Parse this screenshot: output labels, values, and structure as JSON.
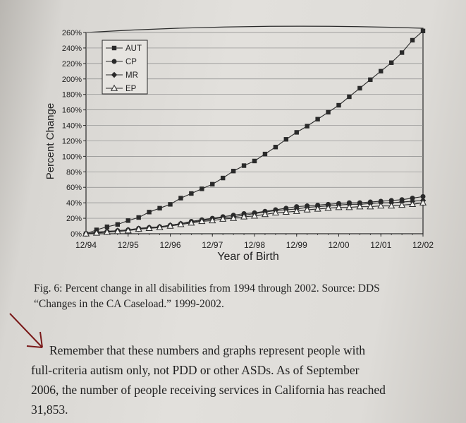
{
  "chart_data": {
    "type": "line",
    "ylabel": "Percent Change",
    "xlabel": "Year of Birth",
    "ylim": [
      0,
      260
    ],
    "yticks": [
      "0%",
      "20%",
      "40%",
      "60%",
      "80%",
      "100%",
      "120%",
      "140%",
      "160%",
      "180%",
      "200%",
      "220%",
      "240%",
      "260%"
    ],
    "xticks": [
      "12/94",
      "12/95",
      "12/96",
      "12/97",
      "12/98",
      "12/99",
      "12/00",
      "12/01",
      "12/02"
    ],
    "legend_position": "top-left",
    "grid": true,
    "x": [
      0,
      0.5,
      1,
      1.5,
      2,
      2.5,
      3,
      3.5,
      4,
      4.5,
      5,
      5.5,
      6,
      6.5,
      7,
      7.5,
      8,
      8.5,
      9,
      9.5,
      10,
      10.5,
      11,
      11.5,
      12,
      12.5,
      13,
      13.5,
      14,
      14.5,
      15,
      15.5,
      16
    ],
    "series": [
      {
        "name": "AUT",
        "marker": "square",
        "values": [
          0,
          5,
          9,
          12,
          17,
          21,
          28,
          33,
          38,
          46,
          52,
          58,
          64,
          72,
          81,
          88,
          94,
          103,
          112,
          122,
          131,
          139,
          148,
          157,
          166,
          177,
          188,
          199,
          210,
          221,
          234,
          250,
          262
        ]
      },
      {
        "name": "CP",
        "marker": "circle",
        "values": [
          0,
          2,
          3,
          4,
          5,
          7,
          8,
          9,
          11,
          13,
          16,
          18,
          20,
          22,
          24,
          26,
          27,
          29,
          31,
          33,
          35,
          36,
          37,
          38,
          39,
          40,
          40,
          41,
          42,
          43,
          44,
          46,
          48
        ]
      },
      {
        "name": "MR",
        "marker": "diamond",
        "values": [
          0,
          2,
          3,
          4,
          5,
          6,
          8,
          9,
          11,
          13,
          15,
          17,
          19,
          21,
          22,
          24,
          26,
          28,
          30,
          31,
          32,
          34,
          35,
          36,
          37,
          38,
          38,
          39,
          40,
          40,
          41,
          42,
          43
        ]
      },
      {
        "name": "EP",
        "marker": "triangle",
        "values": [
          0,
          1,
          2,
          3,
          4,
          6,
          7,
          8,
          10,
          12,
          14,
          16,
          17,
          19,
          20,
          22,
          23,
          25,
          27,
          28,
          29,
          31,
          32,
          33,
          34,
          34,
          35,
          35,
          36,
          36,
          37,
          38,
          40
        ]
      }
    ]
  },
  "caption": {
    "line1": "Fig. 6: Percent change in all disabilities from 1994 through 2002. Source: DDS",
    "line2": "“Changes in the CA Caseload.” 1999-2002."
  },
  "paragraph": {
    "line1": "Remember that these numbers and graphs represent people with",
    "line2": "full-criteria autism only, not PDD or other ASDs. As of September",
    "line3": "2006, the number of people receiving services in California has reached",
    "line4": "31,853."
  },
  "colors": {
    "arrow": "#7a1a1a",
    "ink": "#2a2a2a"
  }
}
